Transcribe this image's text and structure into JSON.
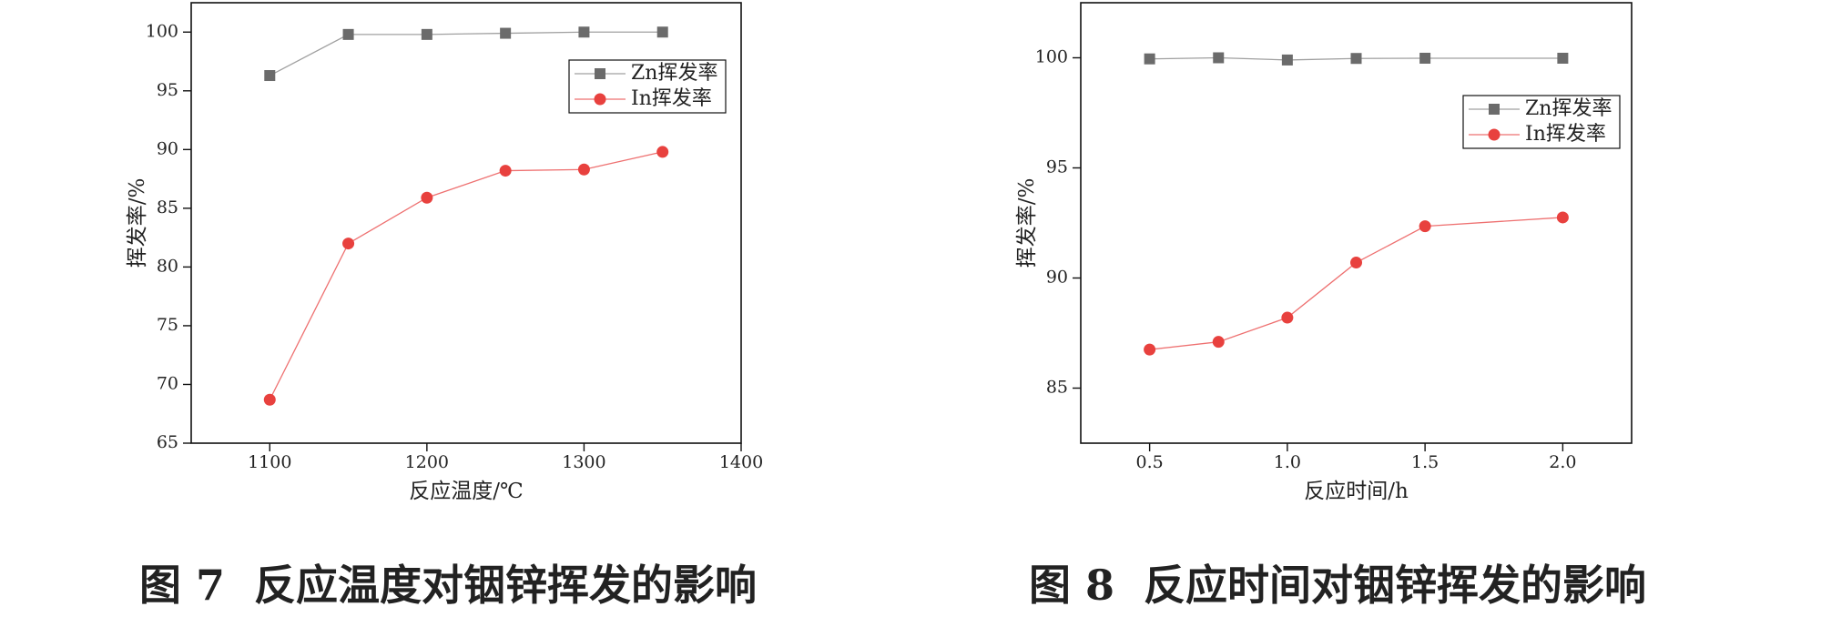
{
  "chart_data": [
    {
      "type": "line",
      "x_label": "反应温度/℃",
      "y_label": "挥发率/%",
      "caption": "图 7  反应温度对铟锌挥发的影响",
      "x": [
        1100,
        1150,
        1200,
        1250,
        1300,
        1350
      ],
      "series": [
        {
          "name": "Zn挥发率",
          "color": "#6b6b6b",
          "line_color": "#a0a0a0",
          "marker": "square",
          "values": [
            96.3,
            99.8,
            99.8,
            99.9,
            100.0,
            100.0
          ]
        },
        {
          "name": "In挥发率",
          "color": "#e8413e",
          "line_color": "#ee7070",
          "marker": "circle",
          "values": [
            68.7,
            82.0,
            85.9,
            88.2,
            88.3,
            89.8
          ]
        }
      ],
      "xlim": [
        1050,
        1400
      ],
      "xticks": [
        1100,
        1200,
        1300,
        1400
      ],
      "ylim": [
        65,
        102.5
      ],
      "yticks": [
        65,
        70,
        75,
        80,
        85,
        90,
        95,
        100
      ],
      "legend": "upper right"
    },
    {
      "type": "line",
      "x_label": "反应时间/h",
      "y_label": "挥发率/%",
      "caption": "图 8  反应时间对铟锌挥发的影响",
      "x": [
        0.5,
        0.75,
        1.0,
        1.25,
        1.5,
        2.0
      ],
      "series": [
        {
          "name": "Zn挥发率",
          "color": "#6b6b6b",
          "line_color": "#a0a0a0",
          "marker": "square",
          "values": [
            99.95,
            100.0,
            99.9,
            99.97,
            99.98,
            99.98
          ]
        },
        {
          "name": "In挥发率",
          "color": "#e8413e",
          "line_color": "#ee7070",
          "marker": "circle",
          "values": [
            86.75,
            87.1,
            88.2,
            90.7,
            92.35,
            92.75
          ]
        }
      ],
      "xlim": [
        0.25,
        2.25
      ],
      "xticks": [
        0.5,
        {
          "value": 1,
          "label": "1.0"
        },
        1.5,
        {
          "value": 2,
          "label": "2.0"
        }
      ],
      "ylim": [
        82.5,
        102.5
      ],
      "yticks": [
        85,
        90,
        95,
        100
      ],
      "legend": "upper right"
    }
  ]
}
